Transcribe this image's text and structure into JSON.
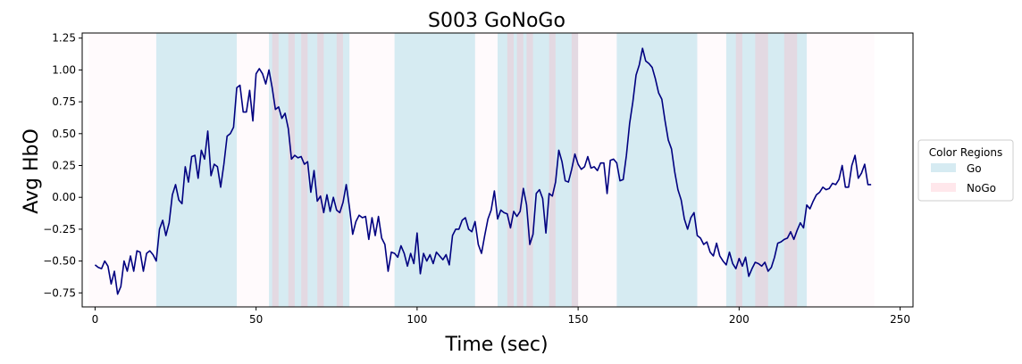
{
  "chart_data": {
    "type": "line",
    "title": "S003 GoNoGo",
    "xlabel": "Time (sec)",
    "ylabel": "Avg HbO",
    "xlim": [
      -4,
      254
    ],
    "ylim": [
      -0.86,
      1.29
    ],
    "xticks": [
      0,
      50,
      100,
      150,
      200,
      250
    ],
    "yticks": [
      -0.75,
      -0.5,
      -0.25,
      0.0,
      0.25,
      0.5,
      0.75,
      1.0,
      1.25
    ],
    "ytick_labels": [
      "−0.75",
      "−0.50",
      "−0.25",
      "0.00",
      "0.25",
      "0.50",
      "0.75",
      "1.00",
      "1.25"
    ],
    "line_color": "#000080",
    "region_colors": {
      "Go": "#add8e6",
      "NoGo": "#ffb6c1",
      "Baseline": "#fff0f5"
    },
    "legend": {
      "title": "Color Regions",
      "placement": "right",
      "entries": [
        {
          "label": "Go",
          "color": "#add8e6"
        },
        {
          "label": "NoGo",
          "color": "#ffb6c1"
        }
      ]
    },
    "regions": [
      {
        "type": "Baseline",
        "start": -2,
        "end": 19
      },
      {
        "type": "Go",
        "start": 19,
        "end": 44
      },
      {
        "type": "Baseline",
        "start": 44,
        "end": 54
      },
      {
        "type": "Go",
        "start": 54,
        "end": 79
      },
      {
        "type": "NoGo",
        "start": 55,
        "end": 57
      },
      {
        "type": "NoGo",
        "start": 60,
        "end": 62
      },
      {
        "type": "NoGo",
        "start": 64,
        "end": 66
      },
      {
        "type": "NoGo",
        "start": 69,
        "end": 71
      },
      {
        "type": "NoGo",
        "start": 75,
        "end": 77
      },
      {
        "type": "Baseline",
        "start": 79,
        "end": 93
      },
      {
        "type": "Go",
        "start": 93,
        "end": 118
      },
      {
        "type": "Baseline",
        "start": 118,
        "end": 125
      },
      {
        "type": "Go",
        "start": 125,
        "end": 150
      },
      {
        "type": "NoGo",
        "start": 128,
        "end": 130
      },
      {
        "type": "NoGo",
        "start": 131,
        "end": 133
      },
      {
        "type": "NoGo",
        "start": 134,
        "end": 136
      },
      {
        "type": "NoGo",
        "start": 141,
        "end": 143
      },
      {
        "type": "NoGo",
        "start": 148,
        "end": 150
      },
      {
        "type": "Baseline",
        "start": 150,
        "end": 162
      },
      {
        "type": "Go",
        "start": 162,
        "end": 187
      },
      {
        "type": "Baseline",
        "start": 187,
        "end": 196
      },
      {
        "type": "Go",
        "start": 196,
        "end": 221
      },
      {
        "type": "NoGo",
        "start": 199,
        "end": 201
      },
      {
        "type": "NoGo",
        "start": 205,
        "end": 209
      },
      {
        "type": "NoGo",
        "start": 214,
        "end": 218
      },
      {
        "type": "Baseline",
        "start": 221,
        "end": 242
      }
    ],
    "series": [
      {
        "name": "Avg HbO",
        "x": [
          0,
          1,
          2,
          3,
          4,
          5,
          6,
          7,
          8,
          9,
          10,
          11,
          12,
          13,
          14,
          15,
          16,
          17,
          18,
          19,
          20,
          21,
          22,
          23,
          24,
          25,
          26,
          27,
          28,
          29,
          30,
          31,
          32,
          33,
          34,
          35,
          36,
          37,
          38,
          39,
          40,
          41,
          42,
          43,
          44,
          45,
          46,
          47,
          48,
          49,
          50,
          51,
          52,
          53,
          54,
          55,
          56,
          57,
          58,
          59,
          60,
          61,
          62,
          63,
          64,
          65,
          66,
          67,
          68,
          69,
          70,
          71,
          72,
          73,
          74,
          75,
          76,
          77,
          78,
          79,
          80,
          81,
          82,
          83,
          84,
          85,
          86,
          87,
          88,
          89,
          90,
          91,
          92,
          93,
          94,
          95,
          96,
          97,
          98,
          99,
          100,
          101,
          102,
          103,
          104,
          105,
          106,
          107,
          108,
          109,
          110,
          111,
          112,
          113,
          114,
          115,
          116,
          117,
          118,
          119,
          120,
          121,
          122,
          123,
          124,
          125,
          126,
          127,
          128,
          129,
          130,
          131,
          132,
          133,
          134,
          135,
          136,
          137,
          138,
          139,
          140,
          141,
          142,
          143,
          144,
          145,
          146,
          147,
          148,
          149,
          150,
          151,
          152,
          153,
          154,
          155,
          156,
          157,
          158,
          159,
          160,
          161,
          162,
          163,
          164,
          165,
          166,
          167,
          168,
          169,
          170,
          171,
          172,
          173,
          174,
          175,
          176,
          177,
          178,
          179,
          180,
          181,
          182,
          183,
          184,
          185,
          186,
          187,
          188,
          189,
          190,
          191,
          192,
          193,
          194,
          195,
          196,
          197,
          198,
          199,
          200,
          201,
          202,
          203,
          204,
          205,
          206,
          207,
          208,
          209,
          210,
          211,
          212,
          213,
          214,
          215,
          216,
          217,
          218,
          219,
          220,
          221,
          222,
          223,
          224,
          225,
          226,
          227,
          228,
          229,
          230,
          231,
          232,
          233,
          234,
          235,
          236,
          237,
          238,
          239,
          240,
          241
        ],
        "y": [
          -0.53,
          -0.55,
          -0.56,
          -0.5,
          -0.54,
          -0.68,
          -0.58,
          -0.76,
          -0.7,
          -0.5,
          -0.58,
          -0.46,
          -0.58,
          -0.42,
          -0.43,
          -0.58,
          -0.44,
          -0.42,
          -0.45,
          -0.5,
          -0.25,
          -0.18,
          -0.3,
          -0.2,
          0.02,
          0.1,
          -0.02,
          -0.05,
          0.24,
          0.12,
          0.32,
          0.33,
          0.15,
          0.37,
          0.3,
          0.52,
          0.17,
          0.26,
          0.24,
          0.08,
          0.26,
          0.48,
          0.5,
          0.55,
          0.86,
          0.88,
          0.67,
          0.67,
          0.84,
          0.6,
          0.97,
          1.01,
          0.97,
          0.89,
          1.0,
          0.86,
          0.69,
          0.71,
          0.62,
          0.66,
          0.54,
          0.3,
          0.33,
          0.31,
          0.32,
          0.26,
          0.28,
          0.04,
          0.21,
          -0.03,
          0.01,
          -0.12,
          0.02,
          -0.11,
          0.0,
          -0.1,
          -0.12,
          -0.04,
          0.1,
          -0.08,
          -0.29,
          -0.19,
          -0.14,
          -0.16,
          -0.15,
          -0.33,
          -0.16,
          -0.3,
          -0.15,
          -0.32,
          -0.37,
          -0.58,
          -0.43,
          -0.44,
          -0.47,
          -0.38,
          -0.44,
          -0.54,
          -0.44,
          -0.52,
          -0.28,
          -0.6,
          -0.44,
          -0.5,
          -0.45,
          -0.52,
          -0.43,
          -0.46,
          -0.49,
          -0.45,
          -0.53,
          -0.3,
          -0.25,
          -0.25,
          -0.18,
          -0.16,
          -0.25,
          -0.27,
          -0.19,
          -0.37,
          -0.44,
          -0.3,
          -0.17,
          -0.1,
          0.05,
          -0.17,
          -0.1,
          -0.12,
          -0.13,
          -0.24,
          -0.11,
          -0.15,
          -0.11,
          0.07,
          -0.06,
          -0.37,
          -0.29,
          0.03,
          0.06,
          -0.01,
          -0.28,
          0.03,
          0.01,
          0.12,
          0.37,
          0.28,
          0.13,
          0.12,
          0.22,
          0.34,
          0.26,
          0.22,
          0.24,
          0.32,
          0.23,
          0.24,
          0.21,
          0.27,
          0.27,
          0.03,
          0.29,
          0.3,
          0.27,
          0.13,
          0.14,
          0.33,
          0.58,
          0.75,
          0.96,
          1.04,
          1.17,
          1.07,
          1.05,
          1.02,
          0.93,
          0.82,
          0.77,
          0.6,
          0.45,
          0.38,
          0.2,
          0.06,
          -0.02,
          -0.17,
          -0.25,
          -0.16,
          -0.12,
          -0.3,
          -0.32,
          -0.37,
          -0.35,
          -0.43,
          -0.46,
          -0.36,
          -0.46,
          -0.5,
          -0.53,
          -0.43,
          -0.52,
          -0.56,
          -0.48,
          -0.54,
          -0.47,
          -0.62,
          -0.56,
          -0.51,
          -0.52,
          -0.54,
          -0.51,
          -0.58,
          -0.55,
          -0.47,
          -0.36,
          -0.35,
          -0.33,
          -0.32,
          -0.27,
          -0.33,
          -0.26,
          -0.2,
          -0.24,
          -0.06,
          -0.09,
          -0.03,
          0.02,
          0.04,
          0.08,
          0.06,
          0.07,
          0.11,
          0.1,
          0.14,
          0.25,
          0.08,
          0.08,
          0.25,
          0.33,
          0.15,
          0.19,
          0.26,
          0.1,
          0.1
        ]
      }
    ]
  }
}
